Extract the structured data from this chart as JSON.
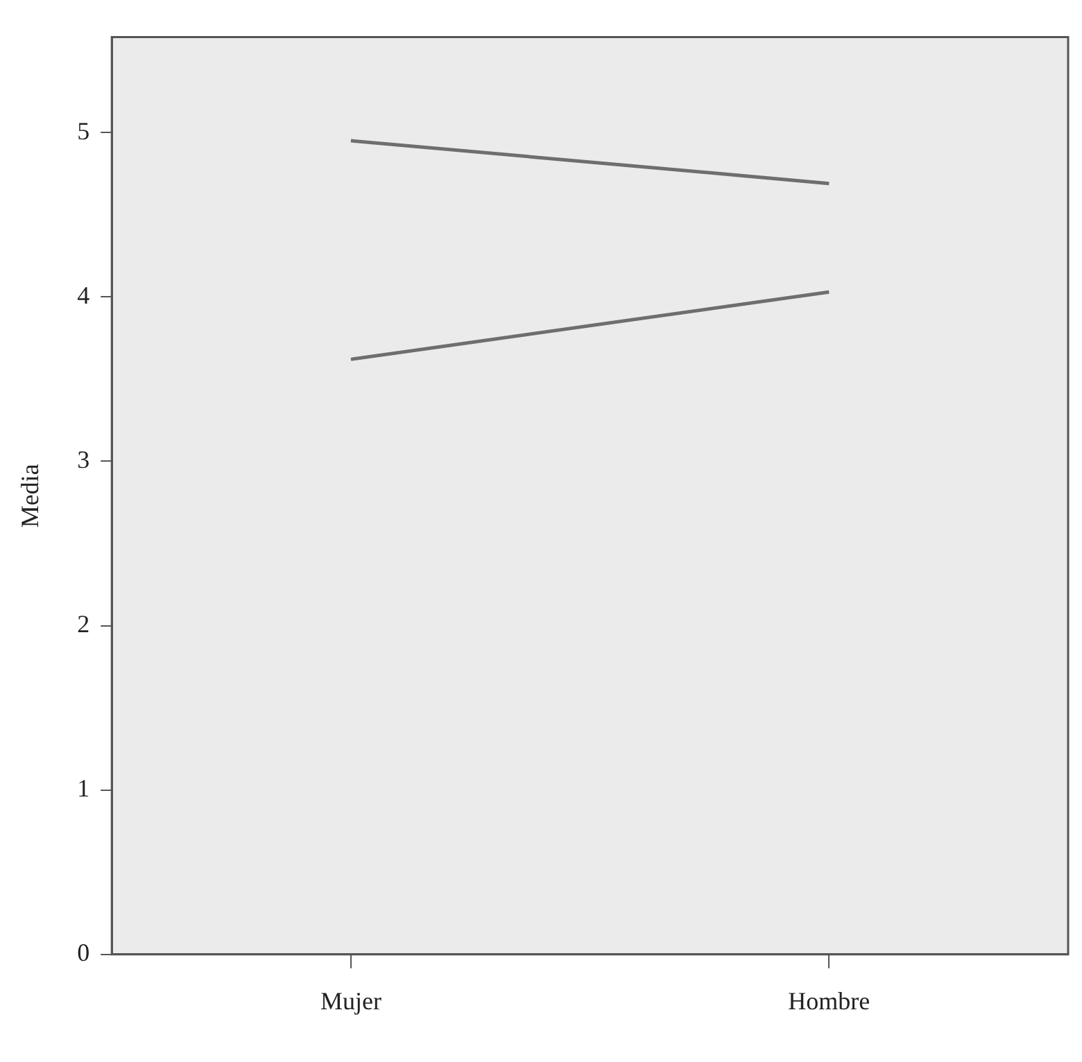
{
  "chart_data": {
    "type": "line",
    "ylabel": "Media",
    "categories": [
      "Mujer",
      "Hombre"
    ],
    "series": [
      {
        "color": "#6e6e6e",
        "values": [
          4.95,
          4.69
        ]
      },
      {
        "color": "#6e6e6e",
        "values": [
          3.62,
          4.03
        ]
      }
    ],
    "ylim": [
      0,
      5.58
    ],
    "yticks": [
      0,
      1,
      2,
      3,
      4,
      5
    ],
    "grid": false,
    "legend": false,
    "marker": "none",
    "line_style": "solid"
  }
}
